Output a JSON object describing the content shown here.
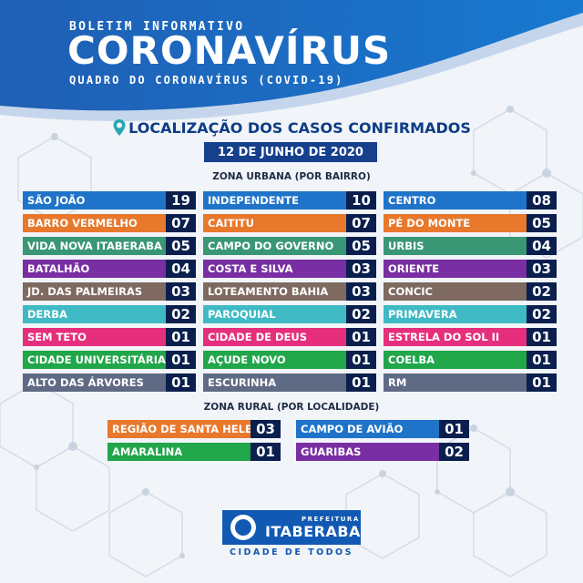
{
  "header": {
    "kicker": "BOLETIM INFORMATIVO",
    "title": "CORONAVÍRUS",
    "subtitle": "QUADRO DO CORONAVÍRUS (COVID-19)"
  },
  "location_title": "LOCALIZAÇÃO DOS CASOS CONFIRMADOS",
  "date": "12 DE JUNHO DE 2020",
  "urban": {
    "heading": "ZONA URBANA (POR BAIRRO)",
    "columns": [
      [
        {
          "name": "SÃO JOÃO",
          "count": "19",
          "color": "#1f74c9"
        },
        {
          "name": "BARRO VERMELHO",
          "count": "07",
          "color": "#e8782c"
        },
        {
          "name": "VIDA NOVA ITABERABA",
          "count": "05",
          "color": "#3a9775"
        },
        {
          "name": "BATALHÃO",
          "count": "04",
          "color": "#7a2ea3"
        },
        {
          "name": "JD. DAS PALMEIRAS",
          "count": "03",
          "color": "#7e6a60"
        },
        {
          "name": "DERBA",
          "count": "02",
          "color": "#3fbac4"
        },
        {
          "name": "SEM TETO",
          "count": "01",
          "color": "#e62f7c"
        },
        {
          "name": "CIDADE UNIVERSITÁRIA",
          "count": "01",
          "color": "#21a64a"
        },
        {
          "name": "ALTO DAS ÁRVORES",
          "count": "01",
          "color": "#5f6a85"
        }
      ],
      [
        {
          "name": "INDEPENDENTE",
          "count": "10",
          "color": "#1f74c9"
        },
        {
          "name": "CAITITU",
          "count": "07",
          "color": "#e8782c"
        },
        {
          "name": "CAMPO DO GOVERNO",
          "count": "05",
          "color": "#3a9775"
        },
        {
          "name": "COSTA E SILVA",
          "count": "03",
          "color": "#7a2ea3"
        },
        {
          "name": "LOTEAMENTO BAHIA",
          "count": "03",
          "color": "#7e6a60"
        },
        {
          "name": "PAROQUIAL",
          "count": "02",
          "color": "#3fbac4"
        },
        {
          "name": "CIDADE DE DEUS",
          "count": "01",
          "color": "#e62f7c"
        },
        {
          "name": "AÇUDE NOVO",
          "count": "01",
          "color": "#21a64a"
        },
        {
          "name": "ESCURINHA",
          "count": "01",
          "color": "#5f6a85"
        }
      ],
      [
        {
          "name": "CENTRO",
          "count": "08",
          "color": "#1f74c9"
        },
        {
          "name": "PÉ DO MONTE",
          "count": "05",
          "color": "#e8782c"
        },
        {
          "name": "URBIS",
          "count": "04",
          "color": "#3a9775"
        },
        {
          "name": "ORIENTE",
          "count": "03",
          "color": "#7a2ea3"
        },
        {
          "name": "CONCIC",
          "count": "02",
          "color": "#7e6a60"
        },
        {
          "name": "PRIMAVERA",
          "count": "02",
          "color": "#3fbac4"
        },
        {
          "name": "ESTRELA DO SOL II",
          "count": "01",
          "color": "#e62f7c"
        },
        {
          "name": "COELBA",
          "count": "01",
          "color": "#21a64a"
        },
        {
          "name": "RM",
          "count": "01",
          "color": "#5f6a85"
        }
      ]
    ]
  },
  "rural": {
    "heading": "ZONA RURAL (POR LOCALIDADE)",
    "columns": [
      [
        {
          "name": "REGIÃO DE SANTA HELENA",
          "count": "03",
          "color": "#e8782c"
        },
        {
          "name": "AMARALINA",
          "count": "01",
          "color": "#21a64a"
        }
      ],
      [
        {
          "name": "CAMPO DE AVIÃO",
          "count": "01",
          "color": "#1f74c9"
        },
        {
          "name": "GUARIBAS",
          "count": "02",
          "color": "#7a2ea3"
        }
      ]
    ]
  },
  "footer": {
    "org_label": "PREFEITURA",
    "org_name": "ITABERABA",
    "slogan": "CIDADE DE TODOS"
  }
}
